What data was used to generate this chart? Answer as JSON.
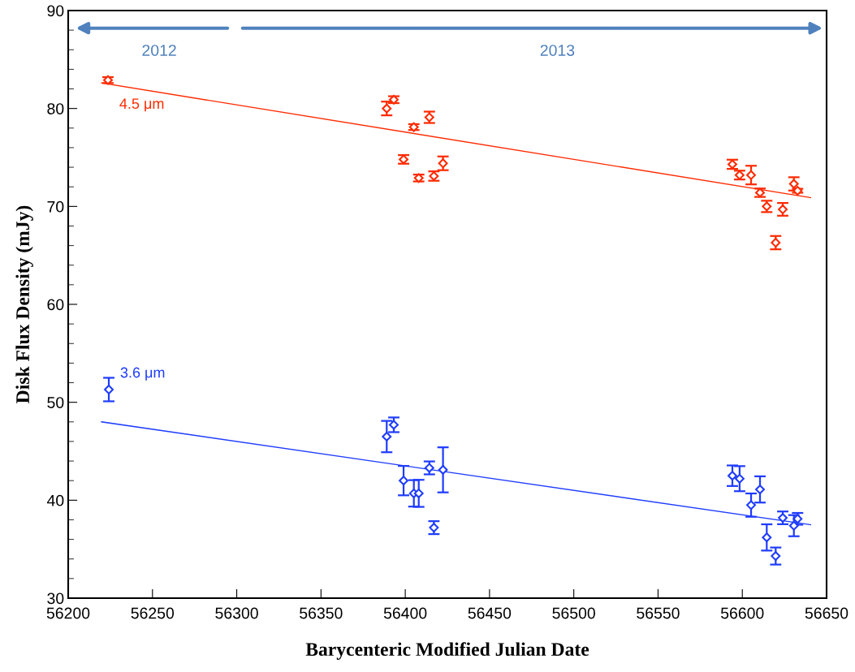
{
  "chart_data": {
    "type": "scatter",
    "xlabel": "Barycenteric Modified Julian Date",
    "ylabel": "Disk Flux Density (mJy)",
    "xlim": [
      56200,
      56650
    ],
    "xticks": [
      56200,
      56250,
      56300,
      56350,
      56400,
      56450,
      56500,
      56550,
      56600,
      56650
    ],
    "ylim": [
      30,
      90
    ],
    "yticks": [
      30,
      40,
      50,
      60,
      70,
      80,
      90
    ],
    "grid": false,
    "legend": false,
    "annotations": [
      "2012",
      "2013"
    ],
    "series": [
      {
        "name": "4.5 μm",
        "color": "#ff2a00",
        "marker": "diamond",
        "x": [
          56223.6,
          56389,
          56393.2,
          56399,
          56405.1,
          56408,
          56414.3,
          56417,
          56422.4,
          56594.1,
          56598.4,
          56605.2,
          56610.5,
          56614.5,
          56619.8,
          56624,
          56630.6,
          56632.8
        ],
        "values": [
          82.9,
          80.0,
          80.9,
          74.8,
          78.1,
          72.9,
          79.1,
          73.1,
          74.4,
          74.3,
          73.2,
          73.2,
          71.4,
          70.0,
          66.3,
          69.7,
          72.3,
          71.6
        ],
        "errors": [
          0.3,
          0.7,
          0.35,
          0.44,
          0.3,
          0.35,
          0.58,
          0.48,
          0.7,
          0.47,
          0.45,
          0.95,
          0.43,
          0.58,
          0.68,
          0.65,
          0.68,
          0.2
        ]
      },
      {
        "name": "3.6 μm",
        "color": "#1f3cff",
        "marker": "diamond",
        "x": [
          56224.1,
          56389,
          56393.2,
          56399,
          56405.1,
          56408,
          56414.3,
          56417,
          56422.4,
          56594.1,
          56598.4,
          56605.2,
          56610.5,
          56614.5,
          56619.8,
          56624,
          56630.6,
          56632.8
        ],
        "values": [
          51.3,
          46.5,
          47.7,
          42.0,
          40.7,
          40.7,
          43.3,
          37.2,
          43.1,
          42.5,
          42.2,
          39.5,
          41.1,
          36.2,
          34.3,
          38.2,
          37.4,
          38.1
        ],
        "errors": [
          1.2,
          1.6,
          0.75,
          1.5,
          1.35,
          1.38,
          0.66,
          0.66,
          2.3,
          1.05,
          1.28,
          1.19,
          1.34,
          1.34,
          0.87,
          0.65,
          1.08,
          0.6
        ]
      },
      {
        "color": "#ff2a00",
        "type": "line",
        "x": [
          56219.8,
          56640.5
        ],
        "values": [
          82.6,
          70.9
        ]
      },
      {
        "color": "#1f3cff",
        "type": "line",
        "x": [
          56219.8,
          56640.5
        ],
        "values": [
          48.0,
          37.5
        ]
      }
    ]
  }
}
